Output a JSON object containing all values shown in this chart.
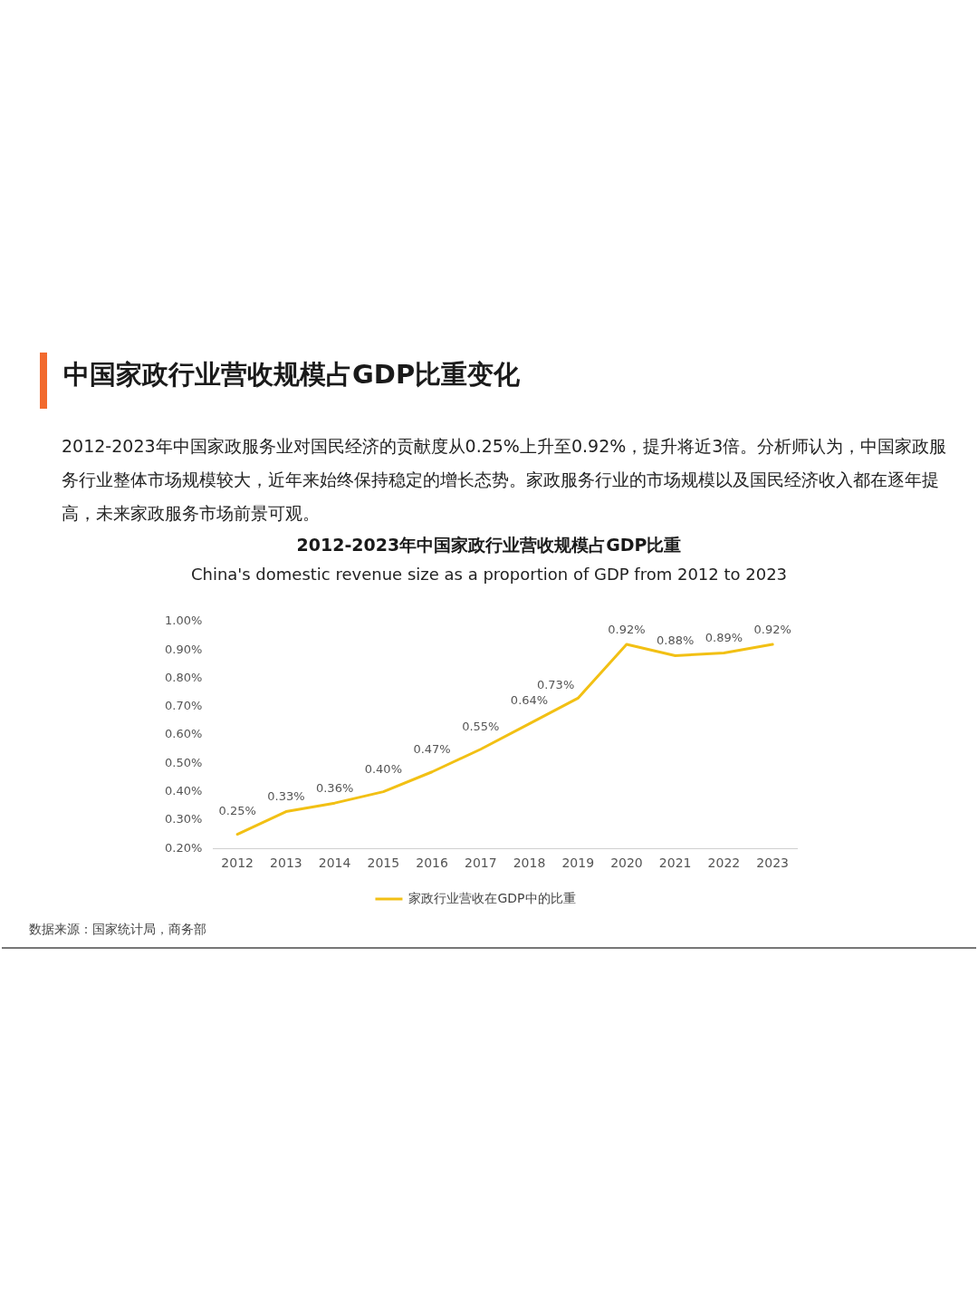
{
  "chart_data": {
    "type": "line",
    "title": "中国家政行业营收规模占GDP比重变化",
    "subtitle": "2012-2023年中国家政行业营收规模占GDP比重",
    "annotations": [
      "2012-2023年中国家政服务业对国民经济的贡献度从0.25%上升至0.92%，提升将近3倍。分析师认为，中国家政服务行业整体市场规模较大，近年来始终保持稳定的增长态势。家政服务行业的市场规模以及国民经济收入都在逐年提高，未来家政服务市场前景可观。",
      "China's domestic revenue size as a proportion of GDP from 2012 to 2023",
      "数据来源：国家统计局，商务部"
    ],
    "categories": [
      "2012",
      "2013",
      "2014",
      "2015",
      "2016",
      "2017",
      "2018",
      "2019",
      "2020",
      "2021",
      "2022",
      "2023"
    ],
    "series": [
      {
        "name": "家政行业营收在GDP中的比重",
        "color": "#f2c014",
        "values": [
          0.25,
          0.33,
          0.36,
          0.4,
          0.47,
          0.55,
          0.64,
          0.73,
          0.92,
          0.88,
          0.89,
          0.92
        ],
        "value_labels": [
          "0.25%",
          "0.33%",
          "0.36%",
          "0.40%",
          "0.47%",
          "0.55%",
          "0.64%",
          "0.73%",
          "0.92%",
          "0.88%",
          "0.89%",
          "0.92%"
        ]
      }
    ],
    "ylim": [
      0.2,
      1.0
    ],
    "yticks": [
      {
        "value": 0.2,
        "label": "0.20%"
      },
      {
        "value": 0.3,
        "label": "0.30%"
      },
      {
        "value": 0.4,
        "label": "0.40%"
      },
      {
        "value": 0.5,
        "label": "0.50%"
      },
      {
        "value": 0.6,
        "label": "0.60%"
      },
      {
        "value": 0.7,
        "label": "0.70%"
      },
      {
        "value": 0.8,
        "label": "0.80%"
      },
      {
        "value": 0.9,
        "label": "0.90%"
      },
      {
        "value": 1.0,
        "label": "1.00%"
      }
    ],
    "grid": false,
    "legend": "bottom",
    "marker": "none"
  }
}
